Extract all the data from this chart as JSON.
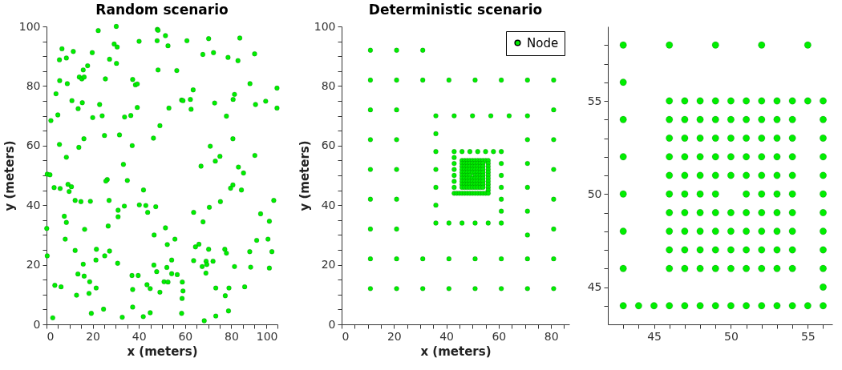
{
  "chart_data": [
    {
      "type": "scatter",
      "title": "Random scenario",
      "xlabel": "x (meters)",
      "ylabel": "y (meters)",
      "marker": "circle",
      "xlim": [
        0,
        100
      ],
      "ylim": [
        0,
        100
      ],
      "xticks": [
        0,
        {
          "value": 5,
          "label": null
        },
        {
          "value": 10,
          "label": null
        },
        {
          "value": 15,
          "label": null
        },
        20,
        {
          "value": 25,
          "label": null
        },
        {
          "value": 30,
          "label": null
        },
        {
          "value": 35,
          "label": null
        },
        40,
        {
          "value": 45,
          "label": null
        },
        {
          "value": 50,
          "label": null
        },
        {
          "value": 55,
          "label": null
        },
        60,
        {
          "value": 65,
          "label": null
        },
        {
          "value": 70,
          "label": null
        },
        {
          "value": 75,
          "label": null
        },
        80,
        {
          "value": 85,
          "label": null
        },
        {
          "value": 90,
          "label": null
        },
        {
          "value": 95,
          "label": null
        },
        100
      ],
      "yticks": [
        0,
        {
          "value": 5,
          "label": null
        },
        {
          "value": 10,
          "label": null
        },
        {
          "value": 15,
          "label": null
        },
        20,
        {
          "value": 25,
          "label": null
        },
        {
          "value": 30,
          "label": null
        },
        {
          "value": 35,
          "label": null
        },
        40,
        {
          "value": 45,
          "label": null
        },
        {
          "value": 50,
          "label": null
        },
        {
          "value": 55,
          "label": null
        },
        60,
        {
          "value": 65,
          "label": null
        },
        {
          "value": 70,
          "label": null
        },
        {
          "value": 75,
          "label": null
        },
        80,
        {
          "value": 85,
          "label": null
        },
        {
          "value": 90,
          "label": null
        },
        {
          "value": 95,
          "label": null
        },
        100
      ],
      "series": [
        {
          "color": "#00ee00",
          "x": [
            22.4,
            30.2,
            48.0,
            48.3,
            51.5,
            83.7,
            70.2,
            60.8,
            47.9,
            40.1,
            29.3,
            30.6,
            52.6,
            6.7,
            11.6,
            19.8,
            72.3,
            90.1,
            67.7,
            78.6,
            8.6,
            5.6,
            27.3,
            82.9,
            30.3,
            17.8,
            15.9,
            48.3,
            56.4,
            14.2,
            15.3,
            16.3,
            25.5,
            37.3,
            5.7,
            9.0,
            38.5,
            39.3,
            88.1,
            99.8,
            63.5,
            81.4,
            4.1,
            80.8,
            58.5,
            59.1,
            62.3,
            94.9,
            11.0,
            15.5,
            72.8,
            90.5,
            23.0,
            39.3,
            53.0,
            99.8,
            13.7,
            62.6,
            4.9,
            24.1,
            36.5,
            33.8,
            20.0,
            77.9,
            1.9,
            49.1,
            46.3,
            80.7,
            16.2,
            25.1,
            31.6,
            5.6,
            37.1,
            70.9,
            14.0,
            90.2,
            75.1,
            8.6,
            73.1,
            33.3,
            66.9,
            83.1,
            0.3,
            1.5,
            85.3,
            26.3,
            25.7,
            35.0,
            9.3,
            9.8,
            10.8,
            3.3,
            5.9,
            80.7,
            79.7,
            84.4,
            42.0,
            12.4,
            14.9,
            19.0,
            27.1,
            75.3,
            98.4,
            40.2,
            43.0,
            47.3,
            70.5,
            33.7,
            31.0,
            7.7,
            43.8,
            63.7,
            31.0,
            92.7,
            8.6,
            67.8,
            96.5,
            0.1,
            16.5,
            26.7,
            51.5,
            46.6,
            8.1,
            55.6,
            91.0,
            95.9,
            52.3,
            66.0,
            64.5,
            12.4,
            21.6,
            27.3,
            70.2,
            77.2,
            77.9,
            88.0,
            97.6,
            25.2,
            0.3,
            21.4,
            54.2,
            63.7,
            69.1,
            72.1,
            30.8,
            15.9,
            46.5,
            67.4,
            69.4,
            81.4,
            52.1,
            88.4,
            96.5,
            47.7,
            54.2,
            56.6,
            69.0,
            13.6,
            16.3,
            37.0,
            39.7,
            18.7,
            50.9,
            52.6,
            58.8,
            3.6,
            6.3,
            21.5,
            37.3,
            43.5,
            44.9,
            59.1,
            73.3,
            79.0,
            85.8,
            13.0,
            49.1,
            58.7,
            77.4,
            18.4,
            37.3,
            24.7,
            78.8,
            19.4,
            44.9,
            58.5,
            2.7,
            32.8,
            41.9,
            73.3,
            68.3
          ],
          "values": [
            98.6,
            100,
            99.0,
            98.7,
            96.9,
            96.1,
            95.9,
            95.2,
            95.2,
            95.0,
            94.1,
            93.1,
            93.5,
            92.5,
            91.6,
            91.2,
            91.2,
            90.8,
            90.6,
            89.6,
            89.4,
            88.8,
            89.0,
            88.5,
            87.6,
            86.8,
            85.4,
            85.4,
            85.2,
            83.0,
            82.4,
            83.0,
            82.4,
            82.2,
            81.8,
            80.8,
            80.4,
            80.7,
            80.8,
            79.3,
            78.7,
            77.2,
            77.4,
            75.5,
            75.3,
            75.1,
            75.5,
            74.9,
            75.1,
            74.4,
            74.3,
            73.8,
            73.8,
            72.8,
            72.6,
            72.6,
            72.4,
            72.2,
            70.3,
            70.0,
            70.1,
            69.6,
            69.4,
            69.9,
            68.4,
            66.7,
            62.5,
            62.3,
            62.3,
            63.4,
            63.6,
            60.4,
            60.0,
            59.8,
            59.4,
            56.7,
            56.4,
            56.1,
            54.8,
            53.7,
            53.1,
            52.8,
            50.4,
            50.2,
            50.8,
            48.6,
            48.1,
            48.3,
            47.0,
            44.6,
            46.2,
            45.9,
            45.6,
            46.8,
            45.7,
            45.1,
            45.1,
            41.6,
            41.2,
            41.3,
            41.6,
            41.2,
            41.6,
            40.1,
            39.9,
            39.5,
            39.3,
            39.7,
            38.3,
            36.3,
            37.6,
            37.6,
            36.1,
            37.1,
            34.2,
            34.4,
            34.6,
            32.2,
            31.9,
            33.0,
            32.4,
            30.0,
            28.6,
            28.6,
            28.2,
            28.6,
            26.8,
            26.9,
            26.0,
            24.8,
            25.2,
            24.6,
            25.2,
            25.2,
            23.9,
            24.4,
            24.4,
            23.0,
            23.0,
            21.6,
            21.6,
            21.4,
            21.2,
            21.2,
            20.5,
            20.2,
            19.9,
            19.4,
            20.1,
            19.4,
            19.1,
            19.2,
            18.9,
            17.7,
            17.0,
            16.7,
            17.2,
            16.9,
            16.2,
            16.4,
            16.4,
            14.3,
            14.3,
            14.2,
            14.2,
            13.1,
            12.6,
            12.2,
            11.7,
            13.3,
            12.0,
            11.2,
            12.2,
            12.2,
            12.6,
            9.8,
            10.8,
            8.7,
            9.6,
            10.4,
            5.8,
            5.1,
            4.5,
            3.7,
            3.9,
            3.7,
            2.2,
            2.4,
            2.6,
            2.8,
            1.2
          ]
        }
      ]
    },
    {
      "type": "scatter",
      "title": "Deterministic scenario",
      "xlabel": "x (meters)",
      "ylabel": "y (meters)",
      "marker": "circle",
      "legend": "top right",
      "xlim": [
        0,
        87
      ],
      "ylim": [
        0,
        100
      ],
      "xticks": [
        0,
        {
          "value": 5,
          "label": null
        },
        {
          "value": 10,
          "label": null
        },
        {
          "value": 15,
          "label": null
        },
        20,
        {
          "value": 25,
          "label": null
        },
        {
          "value": 30,
          "label": null
        },
        {
          "value": 35,
          "label": null
        },
        40,
        {
          "value": 45,
          "label": null
        },
        {
          "value": 50,
          "label": null
        },
        {
          "value": 55,
          "label": null
        },
        60,
        {
          "value": 65,
          "label": null
        },
        {
          "value": 70,
          "label": null
        },
        {
          "value": 75,
          "label": null
        },
        80,
        {
          "value": 85,
          "label": null
        }
      ],
      "yticks": [
        0,
        {
          "value": 5,
          "label": null
        },
        {
          "value": 10,
          "label": null
        },
        {
          "value": 15,
          "label": null
        },
        20,
        {
          "value": 25,
          "label": null
        },
        {
          "value": 30,
          "label": null
        },
        {
          "value": 35,
          "label": null
        },
        40,
        {
          "value": 45,
          "label": null
        },
        {
          "value": 50,
          "label": null
        },
        {
          "value": 55,
          "label": null
        },
        60,
        {
          "value": 65,
          "label": null
        },
        {
          "value": 70,
          "label": null
        },
        {
          "value": 75,
          "label": null
        },
        80,
        {
          "value": 85,
          "label": null
        },
        {
          "value": 90,
          "label": null
        },
        {
          "value": 95,
          "label": null
        },
        100
      ],
      "series": [
        {
          "name": "Node",
          "color": "#00ee00",
          "x": [
            11,
            21,
            31,
            11,
            21,
            31,
            41,
            51,
            61,
            71,
            81,
            11,
            21,
            81,
            11,
            21,
            71,
            81,
            11,
            21,
            71,
            81,
            11,
            21,
            71,
            81,
            71,
            11,
            21,
            71,
            81,
            11,
            21,
            31,
            41,
            51,
            61,
            71,
            81,
            11,
            21,
            31,
            41,
            51,
            61,
            71,
            81,
            36,
            43,
            50,
            57,
            64,
            71,
            36,
            36,
            36,
            36,
            36,
            36,
            41,
            46,
            51,
            56,
            61,
            61,
            61,
            61,
            61,
            61,
            61,
            58,
            43,
            46,
            49,
            52,
            55,
            43,
            46,
            47,
            48,
            49,
            50,
            51,
            52,
            53,
            54,
            55,
            56,
            43,
            46,
            47,
            48,
            49,
            50,
            51,
            52,
            53,
            54,
            56,
            46,
            47,
            48,
            49,
            50,
            51,
            52,
            53,
            54,
            56,
            43,
            46,
            47,
            48,
            49,
            50,
            51,
            52,
            53,
            54,
            56,
            46,
            47,
            48,
            49,
            50,
            51,
            52,
            53,
            54,
            56,
            43,
            46,
            47,
            48,
            49,
            51,
            52,
            53,
            54,
            56,
            46,
            47,
            48,
            49,
            50,
            51,
            52,
            53,
            54,
            56,
            43,
            46,
            47,
            48,
            49,
            50,
            51,
            52,
            53,
            54,
            56,
            46,
            47,
            48,
            49,
            50,
            51,
            52,
            53,
            54,
            56,
            43,
            46,
            47,
            48,
            49,
            50,
            51,
            52,
            53,
            54,
            56,
            56,
            43,
            44,
            45,
            46,
            47,
            48,
            49,
            50,
            51,
            52,
            53,
            54,
            55,
            56
          ],
          "values": [
            92,
            92,
            92,
            82,
            82,
            82,
            82,
            82,
            82,
            82,
            82,
            72,
            72,
            72,
            62,
            62,
            62,
            62,
            52,
            52,
            54,
            52,
            42,
            42,
            46,
            42,
            38,
            32,
            32,
            30,
            32,
            22,
            22,
            22,
            22,
            22,
            22,
            22,
            22,
            12,
            12,
            12,
            12,
            12,
            12,
            12,
            12,
            70,
            70,
            70,
            70,
            70,
            70,
            64,
            58,
            52,
            46,
            40,
            34,
            34,
            34,
            34,
            34,
            34,
            58,
            54,
            50,
            46,
            42,
            38,
            58,
            58,
            58,
            58,
            58,
            58,
            56,
            55,
            55,
            55,
            55,
            55,
            55,
            55,
            55,
            55,
            55,
            55,
            54,
            54,
            54,
            54,
            54,
            54,
            54,
            54,
            54,
            54,
            54,
            53,
            53,
            53,
            53,
            53,
            53,
            53,
            53,
            53,
            53,
            52,
            52,
            52,
            52,
            52,
            52,
            52,
            52,
            52,
            52,
            52,
            51,
            51,
            51,
            51,
            51,
            51,
            51,
            51,
            51,
            51,
            50,
            50,
            50,
            50,
            50,
            50,
            50,
            50,
            50,
            50,
            49,
            49,
            49,
            49,
            49,
            49,
            49,
            49,
            49,
            49,
            48,
            48,
            48,
            48,
            48,
            48,
            48,
            48,
            48,
            48,
            48,
            47,
            47,
            47,
            47,
            47,
            47,
            47,
            47,
            47,
            47,
            46,
            46,
            46,
            46,
            46,
            46,
            46,
            46,
            46,
            46,
            46,
            45,
            44,
            44,
            44,
            44,
            44,
            44,
            44,
            44,
            44,
            44,
            44,
            44,
            44,
            44
          ]
        }
      ]
    },
    {
      "type": "scatter",
      "marker": "circle",
      "xlim": [
        42,
        56.6
      ],
      "ylim": [
        43,
        59
      ],
      "xticks": [
        {
          "value": 43,
          "label": null
        },
        {
          "value": 44,
          "label": null
        },
        45,
        {
          "value": 46,
          "label": null
        },
        {
          "value": 47,
          "label": null
        },
        {
          "value": 48,
          "label": null
        },
        {
          "value": 49,
          "label": null
        },
        50,
        {
          "value": 51,
          "label": null
        },
        {
          "value": 52,
          "label": null
        },
        {
          "value": 53,
          "label": null
        },
        {
          "value": 54,
          "label": null
        },
        55,
        {
          "value": 56,
          "label": null
        }
      ],
      "yticks": [
        {
          "value": 44,
          "label": null
        },
        45,
        {
          "value": 46,
          "label": null
        },
        {
          "value": 47,
          "label": null
        },
        {
          "value": 48,
          "label": null
        },
        {
          "value": 49,
          "label": null
        },
        50,
        {
          "value": 51,
          "label": null
        },
        {
          "value": 52,
          "label": null
        },
        {
          "value": 53,
          "label": null
        },
        {
          "value": 54,
          "label": null
        },
        55,
        {
          "value": 56,
          "label": null
        },
        {
          "value": 57,
          "label": null
        },
        {
          "value": 58,
          "label": null
        }
      ],
      "series": [
        {
          "color": "#00ee00",
          "x": [
            43,
            46,
            49,
            52,
            55,
            43,
            46,
            47,
            48,
            49,
            50,
            51,
            52,
            53,
            54,
            55,
            56,
            43,
            46,
            47,
            48,
            49,
            50,
            51,
            52,
            53,
            54,
            56,
            46,
            47,
            48,
            49,
            50,
            51,
            52,
            53,
            54,
            56,
            43,
            46,
            47,
            48,
            49,
            50,
            51,
            52,
            53,
            54,
            56,
            46,
            47,
            48,
            49,
            50,
            51,
            52,
            53,
            54,
            56,
            43,
            46,
            47,
            48,
            49,
            51,
            52,
            53,
            54,
            56,
            46,
            47,
            48,
            49,
            50,
            51,
            52,
            53,
            54,
            56,
            43,
            46,
            47,
            48,
            49,
            50,
            51,
            52,
            53,
            54,
            56,
            46,
            47,
            48,
            49,
            50,
            51,
            52,
            53,
            54,
            56,
            43,
            46,
            47,
            48,
            49,
            50,
            51,
            52,
            53,
            54,
            56,
            56,
            43,
            44,
            45,
            46,
            47,
            48,
            49,
            50,
            51,
            52,
            53,
            54,
            55,
            56
          ],
          "values": [
            58,
            58,
            58,
            58,
            58,
            56,
            55,
            55,
            55,
            55,
            55,
            55,
            55,
            55,
            55,
            55,
            55,
            54,
            54,
            54,
            54,
            54,
            54,
            54,
            54,
            54,
            54,
            54,
            53,
            53,
            53,
            53,
            53,
            53,
            53,
            53,
            53,
            53,
            52,
            52,
            52,
            52,
            52,
            52,
            52,
            52,
            52,
            52,
            52,
            51,
            51,
            51,
            51,
            51,
            51,
            51,
            51,
            51,
            51,
            50,
            50,
            50,
            50,
            50,
            50,
            50,
            50,
            50,
            50,
            49,
            49,
            49,
            49,
            49,
            49,
            49,
            49,
            49,
            49,
            48,
            48,
            48,
            48,
            48,
            48,
            48,
            48,
            48,
            48,
            48,
            47,
            47,
            47,
            47,
            47,
            47,
            47,
            47,
            47,
            47,
            46,
            46,
            46,
            46,
            46,
            46,
            46,
            46,
            46,
            46,
            46,
            45,
            44,
            44,
            44,
            44,
            44,
            44,
            44,
            44,
            44,
            44,
            44,
            44,
            44,
            44
          ]
        }
      ]
    }
  ]
}
